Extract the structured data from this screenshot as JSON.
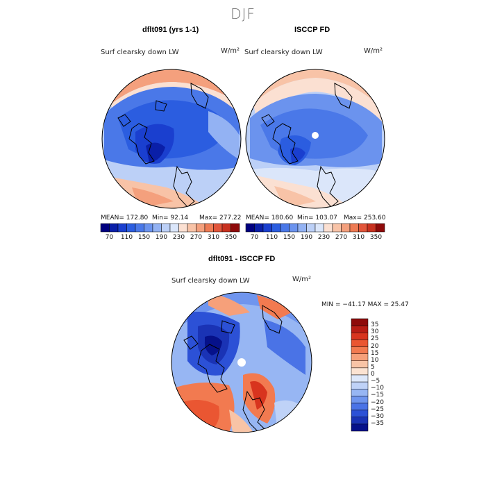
{
  "main_title": "DJF",
  "panels": [
    {
      "title": "dflt091 (yrs 1-1)",
      "variable": "Surf clearsky down LW",
      "units": "W/m²",
      "stats": {
        "mean": "MEAN= 172.80",
        "min": "Min=  92.14",
        "max": "Max= 277.22"
      },
      "colorbar": {
        "labels": [
          "70",
          "110",
          "150",
          "190",
          "230",
          "270",
          "310",
          "350"
        ],
        "colors": [
          "#00007f",
          "#0a1fa8",
          "#1a3fcf",
          "#2b5de0",
          "#4a78e8",
          "#6b93ee",
          "#93b2f3",
          "#bcd0f7",
          "#dbe6fa",
          "#fbe0d2",
          "#f8c3a7",
          "#f4a07d",
          "#ee7b54",
          "#e2553a",
          "#c8311f",
          "#8e0a0a"
        ]
      }
    },
    {
      "title": "ISCCP FD",
      "variable": "Surf clearsky down LW",
      "units": "W/m²",
      "stats": {
        "mean": "MEAN= 180.60",
        "min": "Min= 103.07",
        "max": "Max= 253.60"
      },
      "colorbar": {
        "labels": [
          "70",
          "110",
          "150",
          "190",
          "230",
          "270",
          "310",
          "350"
        ],
        "colors": [
          "#00007f",
          "#0a1fa8",
          "#1a3fcf",
          "#2b5de0",
          "#4a78e8",
          "#6b93ee",
          "#93b2f3",
          "#bcd0f7",
          "#dbe6fa",
          "#fbe0d2",
          "#f8c3a7",
          "#f4a07d",
          "#ee7b54",
          "#e2553a",
          "#c8311f",
          "#8e0a0a"
        ]
      }
    }
  ],
  "difference": {
    "title": "dflt091 - ISCCP FD",
    "variable": "Surf clearsky down LW",
    "units": "W/m²",
    "minmax": "MIN = −41.17 MAX =  25.47",
    "colorbar": {
      "labels": [
        "35",
        "30",
        "25",
        "20",
        "15",
        "10",
        "5",
        "0",
        "−5",
        "−10",
        "−15",
        "−20",
        "−25",
        "−30",
        "−35"
      ],
      "colors": [
        "#8e0a0a",
        "#b81c14",
        "#d8341e",
        "#ea5632",
        "#f27a50",
        "#f6a07a",
        "#f8c4a6",
        "#fbe3d2",
        "#dde8fa",
        "#bfd2f7",
        "#97b6f3",
        "#6f95ee",
        "#4a73e6",
        "#2c51d6",
        "#1a33b5",
        "#06118a"
      ]
    }
  }
}
